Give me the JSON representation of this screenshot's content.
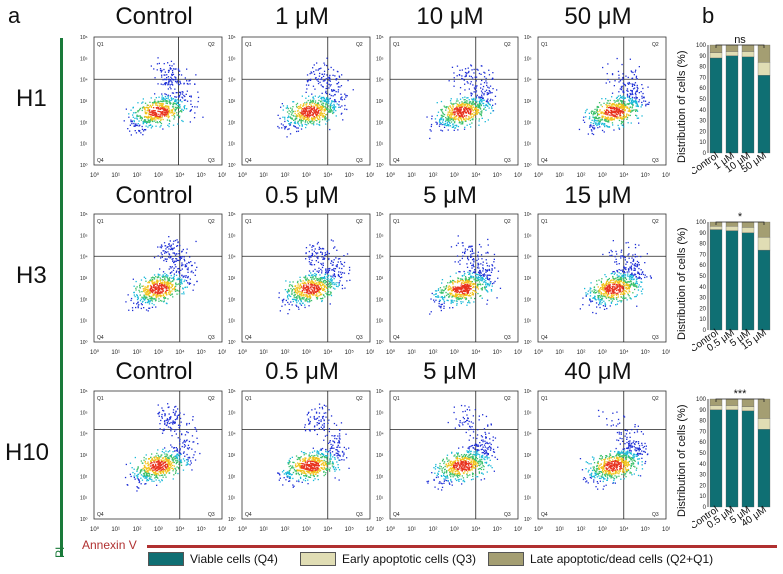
{
  "figure": {
    "panel_a": "a",
    "panel_b": "b",
    "rows": [
      {
        "label": "H1",
        "concentrations": [
          "Control",
          "1 μM",
          "10 μM",
          "50 μM"
        ],
        "bar_categories": [
          "Control",
          "1 μM",
          "10 μM",
          "50 μM"
        ],
        "significance": "ns"
      },
      {
        "label": "H3",
        "concentrations": [
          "Control",
          "0.5 μM",
          "5 μM",
          "15 μM"
        ],
        "bar_categories": [
          "Control",
          "0.5 μM",
          "5 μM",
          "15 μM"
        ],
        "significance": "*"
      },
      {
        "label": "H10",
        "concentrations": [
          "Control",
          "0.5 μM",
          "5 μM",
          "40 μM"
        ],
        "bar_categories": [
          "Control",
          "0.5 μM",
          "5 μM",
          "40 μM"
        ],
        "significance": "***"
      }
    ],
    "quadrants": [
      "Q1",
      "Q2",
      "Q4",
      "Q3"
    ],
    "y_axis_pi": "PI",
    "x_axis_annexin": "Annexin V",
    "flow_ticks": [
      "10⁰",
      "10¹",
      "10²",
      "10³",
      "10⁴",
      "10⁵",
      "10⁶"
    ],
    "bar_ylabel": "Distribution of cells (%)",
    "bar_yticks": [
      "0",
      "10",
      "20",
      "30",
      "40",
      "50",
      "60",
      "70",
      "80",
      "90",
      "100"
    ],
    "legend": [
      {
        "label": "Viable cells (Q4)",
        "color": "#0f6f73"
      },
      {
        "label": "Early apoptotic cells (Q3)",
        "color": "#e0ddb4"
      },
      {
        "label": "Late apoptotic/dead cells (Q2+Q1)",
        "color": "#a49e72"
      }
    ]
  },
  "chart_data": [
    {
      "type": "bar",
      "title": "H1",
      "categories": [
        "Control",
        "1 μM",
        "10 μM",
        "50 μM"
      ],
      "ylabel": "Distribution of cells (%)",
      "ylim": [
        0,
        100
      ],
      "series": [
        {
          "name": "Viable cells (Q4)",
          "values": [
            88,
            90,
            89,
            72
          ]
        },
        {
          "name": "Early apoptotic cells (Q3)",
          "values": [
            5,
            4,
            5,
            12
          ]
        },
        {
          "name": "Late apoptotic/dead cells (Q2+Q1)",
          "values": [
            7,
            6,
            6,
            16
          ]
        }
      ]
    },
    {
      "type": "bar",
      "title": "H3",
      "categories": [
        "Control",
        "0.5 μM",
        "5 μM",
        "15 μM"
      ],
      "ylabel": "Distribution of cells (%)",
      "ylim": [
        0,
        100
      ],
      "series": [
        {
          "name": "Viable cells (Q4)",
          "values": [
            93,
            92,
            90,
            74
          ]
        },
        {
          "name": "Early apoptotic cells (Q3)",
          "values": [
            3,
            4,
            5,
            12
          ]
        },
        {
          "name": "Late apoptotic/dead cells (Q2+Q1)",
          "values": [
            4,
            4,
            5,
            14
          ]
        }
      ]
    },
    {
      "type": "bar",
      "title": "H10",
      "categories": [
        "Control",
        "0.5 μM",
        "5 μM",
        "40 μM"
      ],
      "ylabel": "Distribution of cells (%)",
      "ylim": [
        0,
        100
      ],
      "series": [
        {
          "name": "Viable cells (Q4)",
          "values": [
            90,
            90,
            89,
            72
          ]
        },
        {
          "name": "Early apoptotic cells (Q3)",
          "values": [
            4,
            4,
            4,
            10
          ]
        },
        {
          "name": "Late apoptotic/dead cells (Q2+Q1)",
          "values": [
            6,
            6,
            7,
            18
          ]
        }
      ]
    }
  ]
}
